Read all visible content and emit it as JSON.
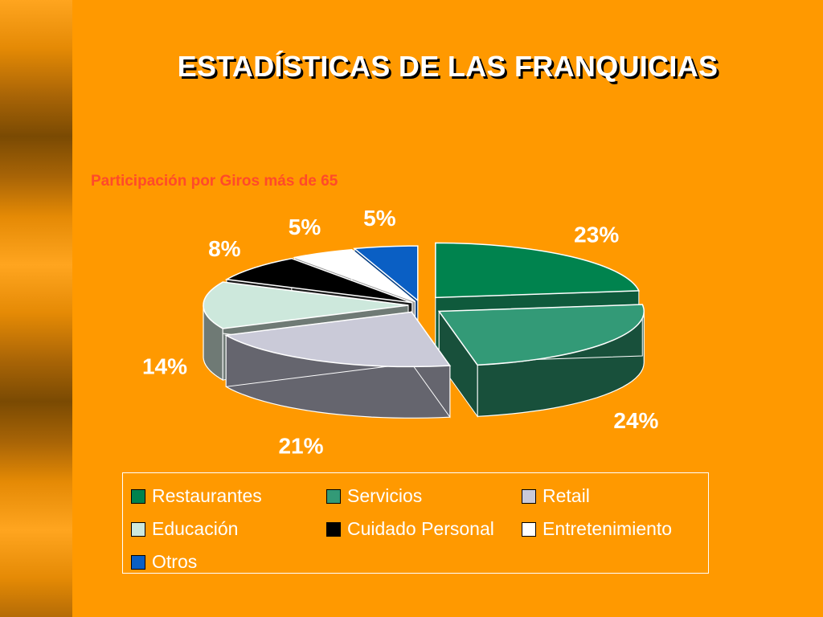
{
  "slide": {
    "title": "ESTADÍSTICAS DE LAS FRANQUICIAS"
  },
  "chart_data": {
    "type": "pie",
    "title": "Participación por Giros más de 65",
    "style": "3d-exploded",
    "legend_position": "bottom",
    "categories": [
      "Restaurantes",
      "Servicios",
      "Retail",
      "Educación",
      "Cuidado Personal",
      "Entretenimiento",
      "Otros"
    ],
    "values": [
      23,
      24,
      21,
      14,
      8,
      5,
      5
    ],
    "labels": [
      "23%",
      "24%",
      "21%",
      "14%",
      "8%",
      "5%",
      "5%"
    ],
    "colors": [
      "#00834e",
      "#339a77",
      "#cacad8",
      "#cde8dc",
      "#000000",
      "#ffffff",
      "#0a5fc4"
    ],
    "side_colors": [
      "#0f5a3c",
      "#18503b",
      "#65656e",
      "#6f7a75",
      "#1a1a1a",
      "#9a9a9a",
      "#073f82"
    ]
  }
}
